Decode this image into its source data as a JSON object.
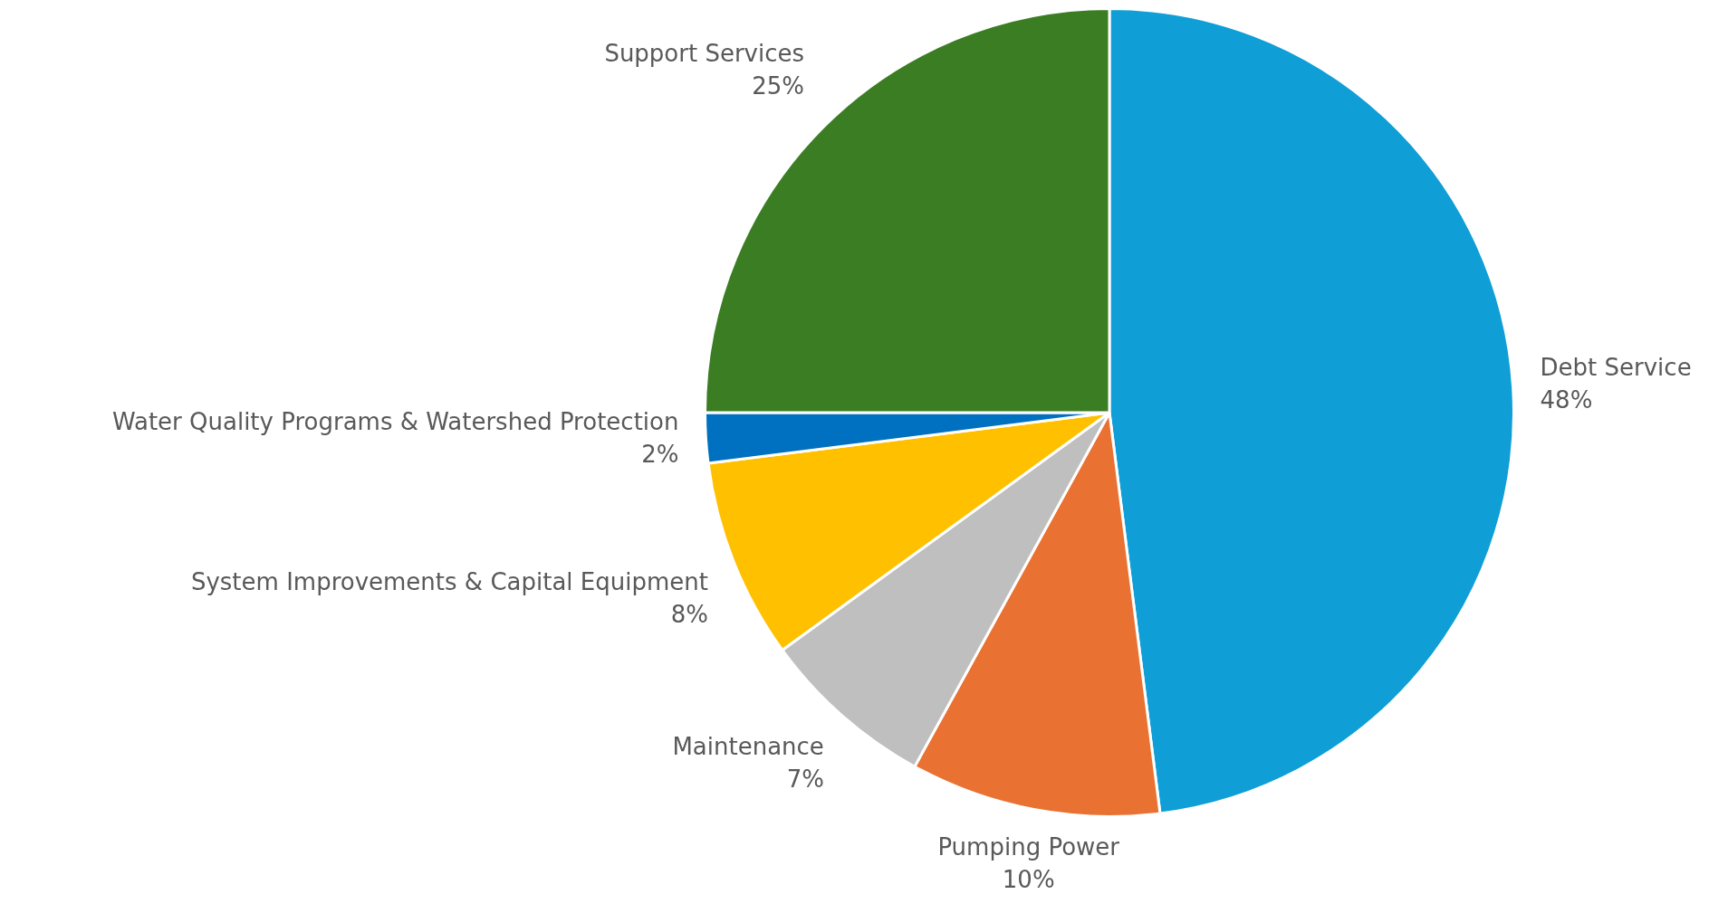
{
  "chart_data": {
    "type": "pie",
    "categories": [
      "Debt Service",
      "Pumping Power",
      "Maintenance",
      "System Improvements & Capital Equipment",
      "Water Quality Programs & Watershed Protection",
      "Support Services"
    ],
    "values": [
      48,
      10,
      7,
      8,
      2,
      25
    ],
    "colors": [
      "#0f9ed5",
      "#e97132",
      "#bfbfbf",
      "#ffc000",
      "#0070c0",
      "#3b7d23"
    ],
    "value_labels": [
      "48%",
      "10%",
      "7%",
      "8%",
      "2%",
      "25%"
    ],
    "legend": false
  }
}
